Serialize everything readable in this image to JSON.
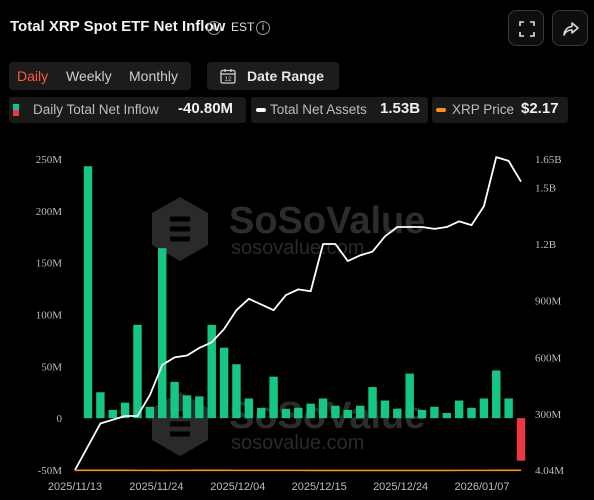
{
  "header": {
    "title": "Total XRP Spot ETF Net Inflow",
    "timezone": "EST",
    "info_icon": "info-icon",
    "fullscreen_icon": "fullscreen-icon",
    "share_icon": "share-icon"
  },
  "controls": {
    "periods": [
      "Daily",
      "Weekly",
      "Monthly"
    ],
    "active_period": "Daily",
    "date_range_label": "Date Range",
    "date_range_icon": "calendar-icon"
  },
  "legend": [
    {
      "label": "Daily Total Net Inflow",
      "value": "-40.80M",
      "color": "#16c784"
    },
    {
      "label": "Total Net Assets",
      "value": "1.53B",
      "color": "#ffffff"
    },
    {
      "label": "XRP Price",
      "value": "$2.17",
      "color": "#f7931a"
    }
  ],
  "watermark": {
    "brand": "SoSoValue",
    "url": "sosovalue.com"
  },
  "colors": {
    "inflow": "#16c784",
    "outflow": "#ea3943",
    "assets": "#ffffff",
    "price": "#f7931a"
  },
  "chart_data": {
    "type": "bar",
    "x_tick_labels": [
      "2025/11/13",
      "2025/11/24",
      "2025/12/04",
      "2025/12/15",
      "2025/12/24",
      "2026/01/07"
    ],
    "left_axis": {
      "ticks": [
        "250M",
        "200M",
        "150M",
        "100M",
        "50M",
        "0",
        "-50M"
      ],
      "ylim": [
        -50,
        250
      ],
      "unit": "M"
    },
    "right_axis": {
      "ticks": [
        "1.65B",
        "1.5B",
        "1.2B",
        "900M",
        "600M",
        "300M",
        "4.04M"
      ],
      "ylim": [
        4.04,
        1650
      ],
      "unit": "M"
    },
    "grid": false,
    "series": [
      {
        "name": "Daily Total Net Inflow",
        "type": "bar",
        "axis": "left",
        "values": [
          243,
          25,
          8,
          15,
          90,
          11,
          164,
          35,
          22,
          21,
          90,
          68,
          52,
          19,
          10,
          40,
          9,
          10,
          14,
          19,
          12,
          8,
          12,
          30,
          17,
          9,
          43,
          8,
          11,
          5,
          17,
          10,
          19,
          46,
          19,
          -41
        ]
      },
      {
        "name": "Total Net Assets",
        "type": "line",
        "axis": "right",
        "values": [
          4.04,
          250,
          270,
          290,
          290,
          400,
          560,
          600,
          610,
          650,
          680,
          750,
          850,
          910,
          880,
          850,
          930,
          960,
          950,
          1200,
          1200,
          1110,
          1140,
          1160,
          1240,
          1290,
          1290,
          1290,
          1280,
          1290,
          1320,
          1300,
          1400,
          1660,
          1640,
          1530
        ]
      },
      {
        "name": "XRP Price",
        "type": "line",
        "axis": "right",
        "values": [
          2.45,
          2.3,
          2.2,
          2.15,
          2.1,
          2.0,
          1.95,
          2.05,
          2.1,
          2.15,
          2.2,
          2.15,
          2.1,
          2.05,
          2.0,
          2.05,
          2.0,
          2.0,
          1.95,
          1.9,
          1.9,
          1.85,
          1.85,
          1.88,
          1.9,
          1.88,
          1.87,
          1.88,
          1.9,
          1.95,
          2.0,
          2.05,
          2.1,
          2.2,
          2.18,
          2.17
        ]
      }
    ]
  }
}
